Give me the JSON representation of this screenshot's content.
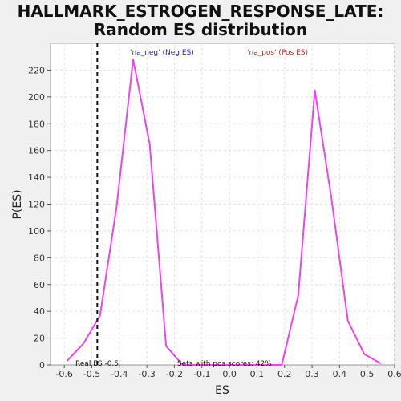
{
  "title_line1": "HALLMARK_ESTROGEN_RESPONSE_LATE:",
  "title_line2": "Random ES distribution",
  "chart_data": {
    "type": "line",
    "xlabel": "ES",
    "ylabel": "P(ES)",
    "xlim": [
      -0.65,
      0.6
    ],
    "ylim": [
      0,
      240
    ],
    "xticks": [
      -0.6,
      -0.5,
      -0.4,
      -0.3,
      -0.2,
      -0.1,
      0.0,
      0.1,
      0.2,
      0.3,
      0.4,
      0.5,
      0.6
    ],
    "xtick_labels": [
      "-0.6",
      "-0.5",
      "-0.4",
      "-0.3",
      "-0.2",
      "-0.1",
      "0.0",
      "0.1",
      "0.2",
      "0.3",
      "0.4",
      "0.5",
      "0.6"
    ],
    "yticks": [
      0,
      20,
      40,
      60,
      80,
      100,
      120,
      140,
      160,
      180,
      200,
      220
    ],
    "grid": true,
    "series": [
      {
        "color": "#ee44ee",
        "x": [
          -0.59,
          -0.53,
          -0.47,
          -0.41,
          -0.35,
          -0.29,
          -0.23,
          -0.17,
          -0.11,
          -0.05,
          0.01,
          0.07,
          0.13,
          0.19,
          0.25,
          0.31,
          0.37,
          0.43,
          0.49,
          0.55
        ],
        "y": [
          3,
          16,
          37,
          118,
          228,
          165,
          14,
          0,
          0,
          0,
          0,
          0,
          0,
          0,
          52,
          205,
          125,
          33,
          8,
          1
        ]
      }
    ],
    "real_es": -0.48,
    "real_es_label": "Real ES -0.5",
    "neg_label": "'na_neg' (Neg ES)",
    "pos_label": "'na_pos' (Pos ES)",
    "neg_color": "#2222cc",
    "pos_color": "#dd2222",
    "pos_scores_label": "Sets with pos scores: 42%"
  }
}
